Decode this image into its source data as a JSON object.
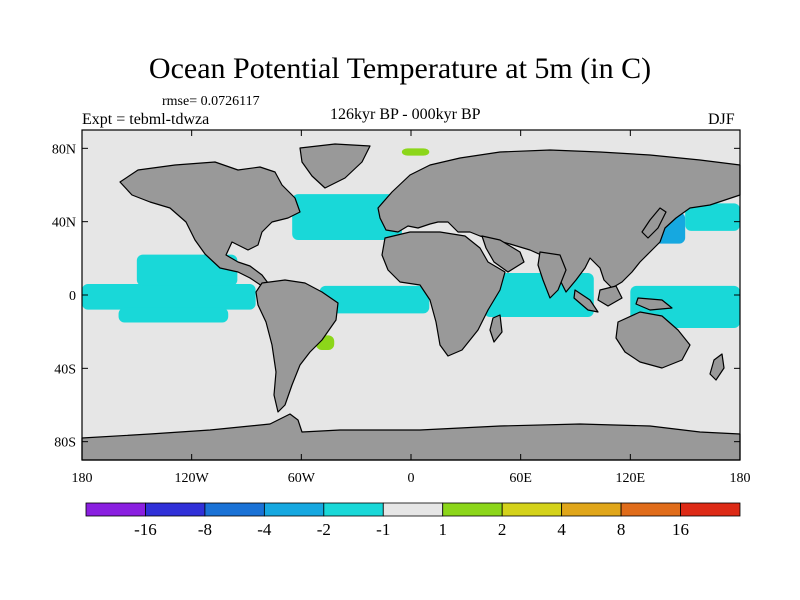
{
  "title": "Ocean Potential Temperature at 5m (in C)",
  "rmse_text": "rmse= 0.0726117",
  "experiment_text": "Expt = tebml-tdwza",
  "period_text": "126kyr BP - 000kyr BP",
  "season_text": "DJF",
  "colors": {
    "land": "#999999",
    "ocean_neutral": "#e6e6e6",
    "coast": "#000000"
  },
  "icons": [
    "world-map-coastlines"
  ],
  "chart_data": {
    "type": "heatmap",
    "projection": "cylindrical-equidistant",
    "xlim": [
      -180,
      180
    ],
    "ylim": [
      -90,
      90
    ],
    "x_ticks": [
      {
        "value": -180,
        "label": "180"
      },
      {
        "value": -120,
        "label": "120W"
      },
      {
        "value": -60,
        "label": "60W"
      },
      {
        "value": 0,
        "label": "0"
      },
      {
        "value": 60,
        "label": "60E"
      },
      {
        "value": 120,
        "label": "120E"
      },
      {
        "value": 180,
        "label": "180"
      }
    ],
    "y_ticks": [
      {
        "value": 80,
        "label": "80N"
      },
      {
        "value": 40,
        "label": "40N"
      },
      {
        "value": 0,
        "label": "0"
      },
      {
        "value": -40,
        "label": "40S"
      },
      {
        "value": -80,
        "label": "80S"
      }
    ],
    "colorbar": {
      "levels": [
        -16,
        -8,
        -4,
        -2,
        -1,
        1,
        2,
        4,
        8,
        16
      ],
      "level_labels": [
        "-16",
        "-8",
        "-4",
        "-2",
        "-1",
        "1",
        "2",
        "4",
        "8",
        "16"
      ],
      "colors": [
        "#8a1fe0",
        "#3030d8",
        "#1a72d6",
        "#16a8e0",
        "#19d8d8",
        "#e6e6e6",
        "#8cd61a",
        "#d4d21a",
        "#e0a61a",
        "#e06c1a",
        "#dd2a16"
      ]
    },
    "anomaly_regions": [
      {
        "name": "equatorial-pacific-east",
        "lon": [
          -180,
          -85
        ],
        "lat": [
          -8,
          6
        ],
        "class": "-2 to -1"
      },
      {
        "name": "tropical-pacific-north",
        "lon": [
          -150,
          -95
        ],
        "lat": [
          5,
          22
        ],
        "class": "-2 to -1"
      },
      {
        "name": "tropical-pacific-south",
        "lon": [
          -160,
          -100
        ],
        "lat": [
          -15,
          -7
        ],
        "class": "-2 to -1"
      },
      {
        "name": "north-atlantic",
        "lon": [
          -65,
          -5
        ],
        "lat": [
          30,
          55
        ],
        "class": "-2 to -1"
      },
      {
        "name": "equatorial-atlantic",
        "lon": [
          -50,
          10
        ],
        "lat": [
          -10,
          5
        ],
        "class": "-2 to -1"
      },
      {
        "name": "indian-ocean",
        "lon": [
          40,
          100
        ],
        "lat": [
          -12,
          12
        ],
        "class": "-2 to -1"
      },
      {
        "name": "kuroshio",
        "lon": [
          125,
          150
        ],
        "lat": [
          28,
          45
        ],
        "class": "-4 to -2"
      },
      {
        "name": "north-pacific-west",
        "lon": [
          150,
          180
        ],
        "lat": [
          35,
          50
        ],
        "class": "-2 to -1"
      },
      {
        "name": "western-pacific-tropics",
        "lon": [
          120,
          180
        ],
        "lat": [
          -18,
          5
        ],
        "class": "-2 to -1"
      },
      {
        "name": "barents-sea",
        "lon": [
          -5,
          10
        ],
        "lat": [
          76,
          80
        ],
        "class": "1 to 2"
      },
      {
        "name": "brazil-current",
        "lon": [
          -52,
          -42
        ],
        "lat": [
          -30,
          -22
        ],
        "class": "1 to 2"
      }
    ]
  }
}
